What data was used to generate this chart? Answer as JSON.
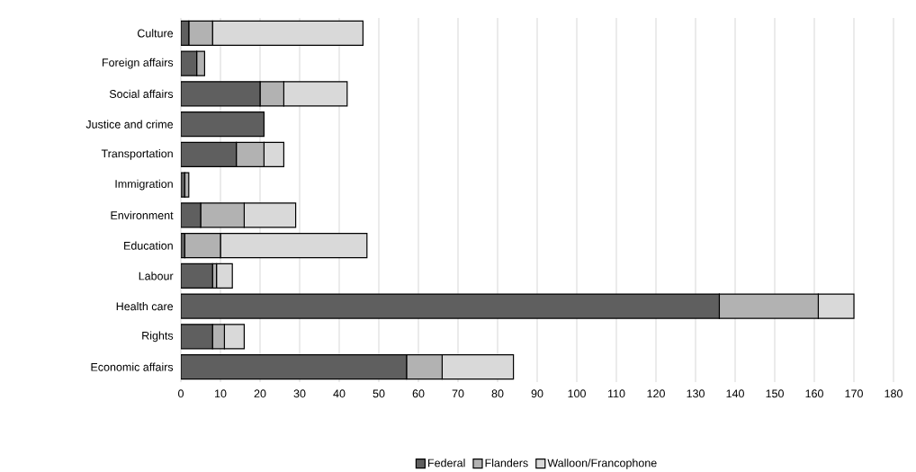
{
  "chart_data": {
    "type": "bar",
    "orientation": "horizontal",
    "stacked": true,
    "categories": [
      "Culture",
      "Foreign affairs",
      "Social affairs",
      "Justice and crime",
      "Transportation",
      "Immigration",
      "Environment",
      "Education",
      "Labour",
      "Health care",
      "Rights",
      "Economic affairs"
    ],
    "series": [
      {
        "name": "Federal",
        "color": "#5f5f5f",
        "values": [
          2,
          4,
          20,
          21,
          14,
          1,
          5,
          1,
          8,
          136,
          8,
          57
        ]
      },
      {
        "name": "Flanders",
        "color": "#b2b2b2",
        "values": [
          6,
          2,
          6,
          0,
          7,
          1,
          11,
          9,
          1,
          25,
          3,
          9
        ]
      },
      {
        "name": "Walloon/Francophone",
        "color": "#d9d9d9",
        "values": [
          38,
          0,
          16,
          0,
          5,
          0,
          13,
          37,
          4,
          9,
          5,
          18
        ]
      }
    ],
    "xlim": [
      0,
      180
    ],
    "xticks": [
      0,
      10,
      20,
      30,
      40,
      50,
      60,
      70,
      80,
      90,
      100,
      110,
      120,
      130,
      140,
      150,
      160,
      170,
      180
    ],
    "grid": "x",
    "legend": "bottom"
  }
}
